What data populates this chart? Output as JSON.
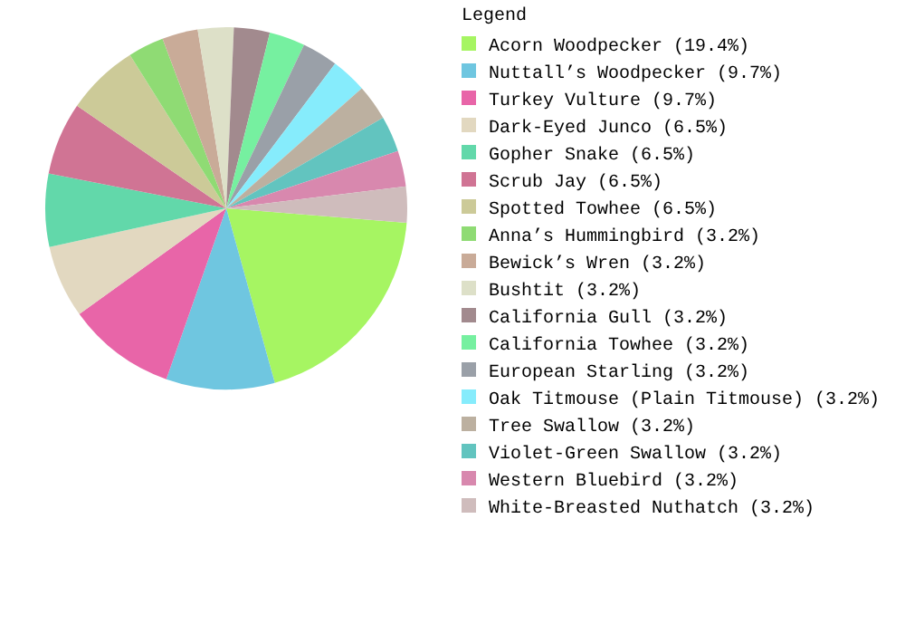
{
  "chart_data": {
    "type": "pie",
    "legend_title": "Legend",
    "legend": "right",
    "categories": [
      "Acorn Woodpecker (19.4%)",
      "Nuttall’s Woodpecker (9.7%)",
      "Turkey Vulture (9.7%)",
      "Dark-Eyed Junco (6.5%)",
      "Gopher Snake (6.5%)",
      "Scrub Jay (6.5%)",
      "Spotted Towhee (6.5%)",
      "Anna’s Hummingbird (3.2%)",
      "Bewick’s Wren (3.2%)",
      "Bushtit (3.2%)",
      "California Gull (3.2%)",
      "California Towhee (3.2%)",
      "European Starling (3.2%)",
      "Oak Titmouse (Plain Titmouse) (3.2%)",
      "Tree Swallow (3.2%)",
      "Violet-Green Swallow (3.2%)",
      "Western Bluebird (3.2%)",
      "White-Breasted Nuthatch (3.2%)"
    ],
    "values": [
      19.4,
      9.7,
      9.7,
      6.5,
      6.5,
      6.5,
      6.5,
      3.2,
      3.2,
      3.2,
      3.2,
      3.2,
      3.2,
      3.2,
      3.2,
      3.2,
      3.2,
      3.2
    ],
    "colors": [
      "#a6f562",
      "#6fc6e0",
      "#e865a8",
      "#e2d8c0",
      "#62d8aa",
      "#d07494",
      "#ccca98",
      "#8fdb74",
      "#c9ab98",
      "#dde0c8",
      "#a28a8e",
      "#76f0a0",
      "#9aa0a8",
      "#86ecfc",
      "#bcb0a0",
      "#62c4bf",
      "#d888ae",
      "#cfbcbc"
    ]
  }
}
